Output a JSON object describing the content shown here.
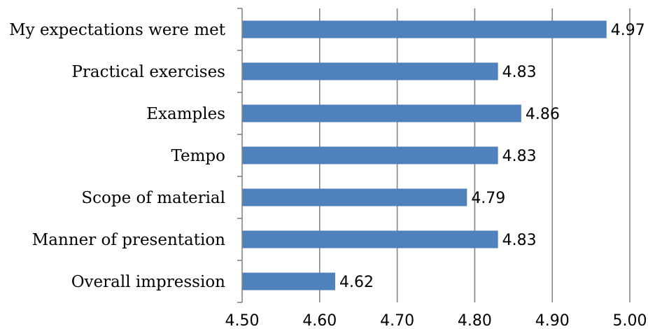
{
  "chart_data": {
    "type": "bar",
    "orientation": "horizontal",
    "categories": [
      "My expectations were met",
      "Practical exercises",
      "Examples",
      "Tempo",
      "Scope of material",
      "Manner of presentation",
      "Overall impression"
    ],
    "values": [
      4.97,
      4.83,
      4.86,
      4.83,
      4.79,
      4.83,
      4.62
    ],
    "value_labels": [
      "4.97",
      "4.83",
      "4.86",
      "4.83",
      "4.79",
      "4.83",
      "4.62"
    ],
    "xlim": [
      4.5,
      5.0
    ],
    "xticks": [
      4.5,
      4.6,
      4.7,
      4.8,
      4.9,
      5.0
    ],
    "xtick_labels": [
      "4.50",
      "4.60",
      "4.70",
      "4.80",
      "4.90",
      "5.00"
    ],
    "grid": "vertical",
    "legend": "none",
    "title": "",
    "xlabel": "",
    "ylabel": "",
    "bar_color": "#4f81bd",
    "grid_color": "#868686"
  }
}
